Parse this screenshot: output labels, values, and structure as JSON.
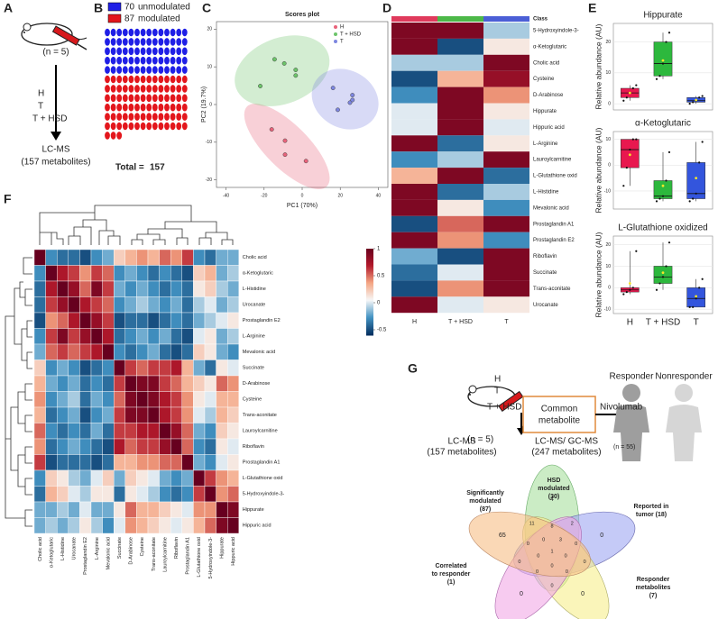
{
  "panel_labels": [
    "A",
    "B",
    "C",
    "D",
    "E",
    "F",
    "G"
  ],
  "panel_a": {
    "n": "(n = 5)",
    "groups": [
      "H",
      "T",
      "T + HSD"
    ],
    "method": "LC-MS",
    "metabolites": "(157 metabolites)"
  },
  "chart_data": [
    {
      "type": "waffle",
      "series": [
        {
          "name": "unmodulated",
          "count": 70,
          "color": "#1f1fe6"
        },
        {
          "name": "modulated",
          "count": 87,
          "color": "#e3161c"
        }
      ],
      "total_label": "Total =",
      "total": 157
    },
    {
      "type": "scatter",
      "title": "Scores plot",
      "xlabel": "PC1 (70%)",
      "ylabel": "PC2 (19.7%)",
      "xlim": [
        -45,
        45
      ],
      "ylim": [
        -22,
        22
      ],
      "xticks": [
        -40,
        -20,
        0,
        20,
        40
      ],
      "yticks": [
        -20,
        -10,
        0,
        10,
        20
      ],
      "series": [
        {
          "name": "H",
          "color": "#e8627a",
          "x": [
            -16,
            -9,
            -9,
            2
          ],
          "values": [
            -6.6,
            -9.6,
            -13.3,
            -15
          ]
        },
        {
          "name": "T + HSD",
          "color": "#6cc46a",
          "x": [
            -22,
            -14.5,
            -9.4,
            -3.4,
            -3.4
          ],
          "values": [
            4.9,
            12,
            10.9,
            9.2,
            7.7
          ]
        },
        {
          "name": "T",
          "color": "#7d86e0",
          "x": [
            16.2,
            18.7,
            25.1,
            26.4,
            26.4
          ],
          "values": [
            4.4,
            -1.4,
            0.5,
            1.2,
            2.5
          ]
        }
      ]
    },
    {
      "type": "heatmap",
      "header": "Class",
      "columns": [
        "H",
        "T + HSD",
        "T"
      ],
      "column_colors": [
        "#e03a5c",
        "#4cb848",
        "#4b5fd6"
      ],
      "rows": [
        "5-Hydroxyindole-3-",
        "α-Ketoglutaric",
        "Cholic acid",
        "Cysteine",
        "D-Arabinose",
        "Hippurate",
        "Hippuric acid",
        "L-Arginine",
        "Lauroylcarnitine",
        "L-Glutathione oxid",
        "L-Histidine",
        "Mevalonic acid",
        "Prostaglandin A1",
        "Prostaglandin E2",
        "Riboflavin",
        "Succinate",
        "Trans-aconitate",
        "Urocanate"
      ],
      "values": [
        [
          0.9,
          0.9,
          -0.1
        ],
        [
          0.9,
          -0.5,
          0.1
        ],
        [
          -0.1,
          -0.1,
          0.9
        ],
        [
          -0.5,
          0.3,
          0.8
        ],
        [
          -0.3,
          0.9,
          0.4
        ],
        [
          0,
          0.9,
          0.1
        ],
        [
          0,
          0.9,
          0
        ],
        [
          0.9,
          -0.4,
          0.1
        ],
        [
          -0.3,
          -0.1,
          0.9
        ],
        [
          0.3,
          0.9,
          -0.4
        ],
        [
          0.9,
          -0.4,
          -0.1
        ],
        [
          0.9,
          0.1,
          -0.3
        ],
        [
          -0.5,
          0.5,
          0.9
        ],
        [
          0.9,
          0.4,
          -0.3
        ],
        [
          -0.2,
          -0.5,
          0.9
        ],
        [
          -0.4,
          0,
          0.9
        ],
        [
          -0.5,
          0.4,
          0.9
        ],
        [
          0.9,
          0,
          0.1
        ]
      ],
      "zlim": [
        -0.6,
        1
      ],
      "colors": [
        "#053061",
        "#4393c3",
        "#f7f7f7",
        "#f4a582",
        "#b2182b",
        "#67001f"
      ]
    },
    {
      "type": "box",
      "title": "Hippurate",
      "ylabel": "Relative abundance (AU)",
      "ylim": [
        -2,
        26
      ],
      "yticks": [
        0,
        10,
        20
      ],
      "colors": [
        "#e8184f",
        "#2db83d",
        "#3355dd"
      ],
      "boxes": [
        {
          "min": 1,
          "q1": 2,
          "median": 3.5,
          "q3": 5,
          "max": 6,
          "mean": 3.5,
          "points": [
            1,
            2,
            3.5,
            5,
            6
          ]
        },
        {
          "min": 8,
          "q1": 9,
          "median": 13,
          "q3": 20,
          "max": 23,
          "mean": 14,
          "points": [
            8,
            9,
            13,
            20,
            23
          ]
        },
        {
          "min": 0,
          "q1": 0.5,
          "median": 1,
          "q3": 2,
          "max": 2.5,
          "mean": 1.2,
          "points": [
            0,
            0.5,
            1,
            2,
            2.5
          ]
        }
      ]
    },
    {
      "type": "box",
      "title": "α-Ketoglutaric",
      "ylabel": "Relative abundance (AU)",
      "ylim": [
        -17,
        13
      ],
      "yticks": [
        -10,
        0,
        10
      ],
      "colors": [
        "#e8184f",
        "#2db83d",
        "#3355dd"
      ],
      "boxes": [
        {
          "min": -8,
          "q1": -1,
          "median": 6,
          "q3": 10,
          "max": 10,
          "mean": 4,
          "points": [
            -8,
            -1,
            6,
            10,
            10
          ]
        },
        {
          "min": -14,
          "q1": -13,
          "median": -12,
          "q3": -6,
          "max": 5,
          "mean": -8,
          "points": [
            -14,
            -13,
            -12,
            -6,
            5
          ]
        },
        {
          "min": -14,
          "q1": -13,
          "median": -11,
          "q3": 1,
          "max": 9,
          "mean": -5,
          "points": [
            -14,
            -13,
            -11,
            1,
            9
          ]
        }
      ]
    },
    {
      "type": "box",
      "title": "L-Glutathione oxidized",
      "ylabel": "Relative abundance (AU)",
      "ylim": [
        -12,
        24
      ],
      "yticks": [
        -10,
        0,
        10,
        20
      ],
      "colors": [
        "#e8184f",
        "#2db83d",
        "#3355dd"
      ],
      "categories": [
        "H",
        "T + HSD",
        "T"
      ],
      "boxes": [
        {
          "min": -3,
          "q1": -2,
          "median": -1,
          "q3": 0,
          "max": 17,
          "mean": 2,
          "points": [
            -3,
            -2,
            -1,
            0,
            17
          ]
        },
        {
          "min": -1,
          "q1": 2,
          "median": 5,
          "q3": 10,
          "max": 21,
          "mean": 7,
          "points": [
            -1,
            2,
            5,
            10,
            21
          ]
        },
        {
          "min": -9,
          "q1": -9,
          "median": -5,
          "q3": 0,
          "max": 4,
          "mean": -4,
          "points": [
            -9,
            -9,
            -5,
            0,
            4
          ]
        }
      ]
    },
    {
      "type": "heatmap",
      "rows": [
        "Cholic acid",
        "α-Ketoglutaric",
        "L-Histidine",
        "Urocanate",
        "Prostaglandin E2",
        "L-Arginine",
        "Mevalonic acid",
        "Succinate",
        "D-Arabinose",
        "Cysteine",
        "Trans-aconitate",
        "Lauroylcarnitine",
        "Riboflavin",
        "Prostaglandin A1",
        "L-Glutathione oxid",
        "5-Hydroxyindole-3-",
        "Hippurate",
        "Hippuric acid"
      ],
      "values": [
        [
          1,
          -0.3,
          -0.4,
          -0.4,
          -0.5,
          -0.3,
          -0.2,
          0.2,
          0.3,
          0.4,
          0.3,
          0.5,
          0.4,
          0.6,
          -0.3,
          -0.4,
          -0.2,
          -0.2
        ],
        [
          -0.3,
          1,
          0.7,
          0.6,
          0.4,
          0.6,
          0.5,
          -0.3,
          -0.2,
          -0.3,
          -0.4,
          -0.3,
          -0.4,
          -0.5,
          0.2,
          0.3,
          -0.2,
          -0.1
        ],
        [
          -0.4,
          0.7,
          1,
          0.8,
          0.5,
          0.9,
          0.6,
          -0.2,
          -0.3,
          -0.2,
          -0.3,
          -0.4,
          -0.3,
          -0.4,
          0.1,
          0.2,
          -0.1,
          -0.2
        ],
        [
          -0.4,
          0.6,
          0.8,
          1,
          0.7,
          0.6,
          0.5,
          -0.3,
          -0.2,
          -0.1,
          -0.2,
          -0.3,
          -0.2,
          -0.4,
          -0.1,
          0,
          -0.2,
          -0.1
        ],
        [
          -0.5,
          0.4,
          0.5,
          0.7,
          1,
          0.8,
          0.6,
          -0.5,
          -0.4,
          -0.4,
          -0.5,
          -0.4,
          -0.3,
          -0.4,
          -0.2,
          -0.1,
          0,
          0.1
        ],
        [
          -0.3,
          0.6,
          0.9,
          0.6,
          0.8,
          1,
          0.7,
          -0.4,
          -0.3,
          -0.2,
          -0.3,
          -0.2,
          -0.4,
          -0.5,
          0,
          0.1,
          -0.2,
          -0.1
        ],
        [
          -0.2,
          0.5,
          0.6,
          0.5,
          0.6,
          0.7,
          1,
          -0.3,
          -0.4,
          -0.3,
          -0.2,
          -0.4,
          -0.5,
          -0.4,
          0.2,
          0.1,
          -0.2,
          -0.3
        ],
        [
          0.2,
          -0.3,
          -0.2,
          -0.3,
          -0.5,
          -0.4,
          -0.3,
          1,
          0.6,
          0.5,
          0.6,
          0.6,
          0.7,
          0.3,
          -0.2,
          -0.4,
          0.1,
          0
        ],
        [
          0.3,
          -0.2,
          -0.3,
          -0.2,
          -0.4,
          -0.3,
          -0.4,
          0.6,
          1,
          0.9,
          0.9,
          0.6,
          0.5,
          0.3,
          0.2,
          0.1,
          0.5,
          0.4
        ],
        [
          0.4,
          -0.3,
          -0.2,
          -0.1,
          -0.4,
          -0.2,
          -0.3,
          0.5,
          0.9,
          1,
          0.9,
          0.7,
          0.6,
          0.4,
          0.1,
          0,
          0.3,
          0.3
        ],
        [
          0.3,
          -0.4,
          -0.3,
          -0.2,
          -0.5,
          -0.3,
          -0.2,
          0.6,
          0.9,
          0.9,
          1,
          0.7,
          0.6,
          0.4,
          0,
          -0.1,
          0.3,
          0.2
        ],
        [
          0.5,
          -0.3,
          -0.4,
          -0.3,
          -0.4,
          -0.2,
          -0.4,
          0.6,
          0.6,
          0.7,
          0.7,
          1,
          0.8,
          0.5,
          -0.2,
          -0.3,
          0.2,
          0.1
        ],
        [
          0.4,
          -0.4,
          -0.3,
          -0.2,
          -0.3,
          -0.4,
          -0.5,
          0.7,
          0.5,
          0.6,
          0.6,
          0.8,
          1,
          0.5,
          -0.3,
          -0.4,
          0.1,
          0
        ],
        [
          0.6,
          -0.5,
          -0.4,
          -0.4,
          -0.4,
          -0.5,
          -0.4,
          0.3,
          0.3,
          0.4,
          0.4,
          0.5,
          0.5,
          1,
          -0.2,
          -0.3,
          0,
          0.1
        ],
        [
          -0.3,
          0.2,
          0.1,
          -0.1,
          -0.2,
          0,
          0.2,
          -0.2,
          0.2,
          0.1,
          0,
          -0.2,
          -0.3,
          -0.2,
          1,
          0.6,
          0.4,
          0.3
        ],
        [
          -0.4,
          0.3,
          0.2,
          0,
          -0.1,
          0.1,
          0.1,
          -0.4,
          0.1,
          0,
          -0.1,
          -0.3,
          -0.4,
          -0.3,
          0.6,
          1,
          0.4,
          0.5
        ],
        [
          -0.2,
          -0.2,
          -0.1,
          -0.2,
          0,
          -0.2,
          -0.2,
          0.1,
          0.5,
          0.3,
          0.3,
          0.2,
          0.1,
          0,
          0.4,
          0.4,
          1,
          0.9
        ],
        [
          -0.2,
          -0.1,
          -0.2,
          -0.1,
          0.1,
          -0.1,
          -0.3,
          0,
          0.4,
          0.3,
          0.2,
          0.1,
          0,
          0.1,
          0.3,
          0.5,
          0.9,
          1
        ]
      ],
      "zlim": [
        -0.6,
        1
      ],
      "colors": [
        "#053061",
        "#4393c3",
        "#f7f7f7",
        "#f4a582",
        "#b2182b",
        "#67001f"
      ],
      "colorbar_ticks": [
        1,
        0.5,
        0,
        -0.5
      ]
    }
  ],
  "panel_g": {
    "groups": [
      "H",
      "T",
      "T + HSD"
    ],
    "n": "(n = 5)",
    "method1": "LC-MS",
    "metabolites1": "(157 metabolites)",
    "box": [
      "Common",
      "metabolite"
    ],
    "drug": "Nivolumab",
    "method2": "LC-MS/ GC-MS",
    "metabolites2": "(247 metabolites)",
    "responder": "Responder",
    "nonresponder": "Nonresponder",
    "n_patients": "(n = 55)",
    "venn": {
      "sets": [
        {
          "lines": [
            "HSD",
            "modulated",
            "(30)"
          ],
          "only": "4"
        },
        {
          "lines": [
            "Reported in",
            "tumor (18)"
          ],
          "only": "0"
        },
        {
          "lines": [
            "Responder",
            "metabolites",
            "(7)"
          ],
          "only": "0"
        },
        {
          "lines": [
            "Correlated",
            "to responder",
            "(1)"
          ],
          "only": "0"
        },
        {
          "lines": [
            "Significantly",
            "modulated",
            "(87)"
          ],
          "only": "65"
        }
      ],
      "regions": [
        "2",
        "0",
        "0",
        "0",
        "11",
        "8",
        "0",
        "0",
        "0",
        "0",
        "3",
        "0",
        "0",
        "0",
        "0",
        "1"
      ]
    }
  }
}
